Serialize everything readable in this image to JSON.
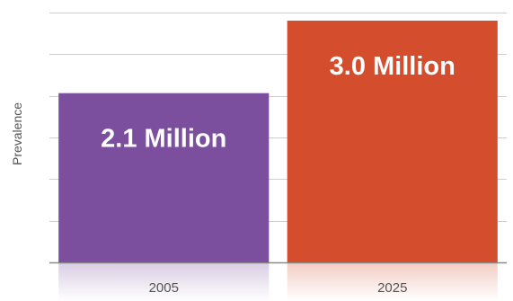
{
  "chart_data": {
    "type": "bar",
    "title": "",
    "xlabel": "",
    "ylabel": "Prevalence",
    "categories": [
      "2005",
      "2025"
    ],
    "values": [
      2.1,
      3.0
    ],
    "data_labels": [
      "2.1 Million",
      "3.0 Million"
    ],
    "ylim": [
      0,
      3.1
    ],
    "grid": true,
    "colors": [
      "#7b4f9e",
      "#d44d2d"
    ],
    "grid_color": "#cfcfcf",
    "axis_color": "#8a8a8a"
  }
}
